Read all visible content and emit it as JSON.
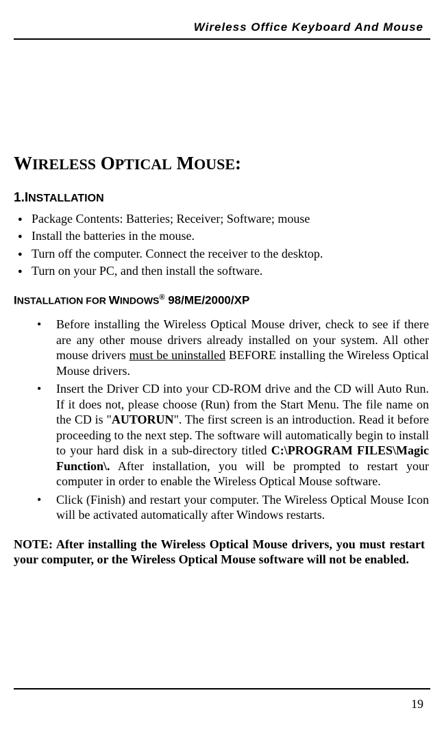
{
  "header": {
    "title": "Wireless Office Keyboard And Mouse"
  },
  "main_title": {
    "w": "W",
    "ireless": "IRELESS",
    "sp1": " ",
    "o": "O",
    "ptical": "PTICAL",
    "sp2": " ",
    "m": "M",
    "ouse": "OUSE",
    "colon": ":"
  },
  "section1": {
    "num": "1.I",
    "rest": "NSTALLATION"
  },
  "bullets": [
    "Package Contents: Batteries; Receiver; Software; mouse",
    "Install the batteries in the mouse.",
    "Turn off the computer. Connect the receiver to the desktop.",
    "Turn on your PC, and then install the software."
  ],
  "subtitle": {
    "i": "I",
    "nstallation_for": "NSTALLATION FOR ",
    "w": "W",
    "indows": "INDOWS",
    "reg": "®",
    "rest": " 98/ME/2000/XP"
  },
  "dots": {
    "item1": {
      "p1": "Before installing the Wireless Optical Mouse driver, check to see if there are any other mouse drivers already installed on your system. All other mouse drivers ",
      "underline": "must be uninstalled",
      "p2": " BEFORE installing the Wireless Optical Mouse drivers."
    },
    "item2": {
      "p1": "Insert the Driver CD into your CD-ROM drive and the CD will Auto Run. If it does not, please choose (Run) from the Start Menu. The file name on the CD is \"",
      "b1": "AUTORUN",
      "p2": "\". The first screen is an introduction. Read it  before proceeding to the next step. The software will automatically begin to install to your hard disk in a sub-directory titled ",
      "b2": "C:\\PROGRAM FILES\\Magic Function\\.",
      "p3": " After installation, you will be prompted to restart your computer in order to enable the Wireless Optical Mouse software."
    },
    "item3": "Click (Finish) and restart your computer. The Wireless Optical Mouse Icon will be activated automatically after Windows restarts."
  },
  "note": "NOTE:  After installing the Wireless Optical Mouse drivers, you must restart your computer, or the Wireless Optical Mouse software will not be enabled.",
  "page_number": "19"
}
